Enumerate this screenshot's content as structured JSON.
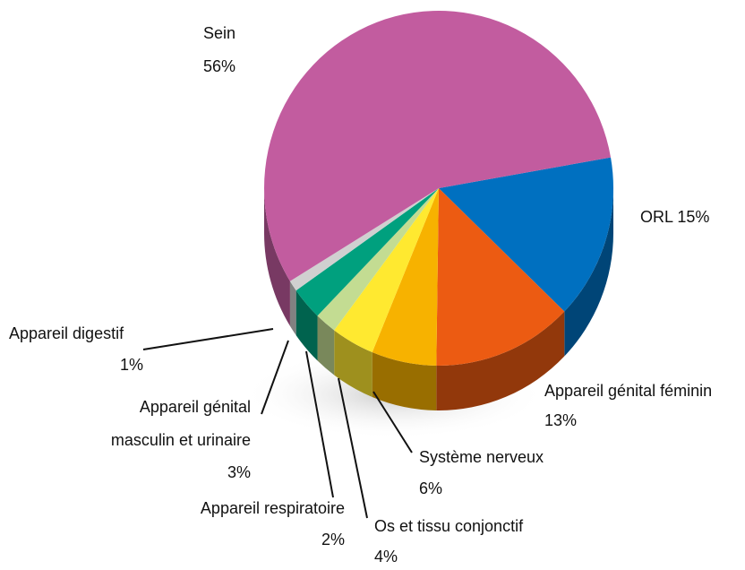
{
  "chart_data": {
    "type": "pie",
    "categories": [
      "ORL",
      "Appareil génital féminin",
      "Système nerveux",
      "Os et tissu conjonctif",
      "Appareil respiratoire",
      "Appareil génital masculin et urinaire",
      "Appareil digestif",
      "Sein"
    ],
    "values": [
      15,
      13,
      6,
      4,
      2,
      3,
      1,
      56
    ],
    "value_labels": [
      "15%",
      "13%",
      "6%",
      "4%",
      "2%",
      "3%",
      "1%",
      "56%"
    ],
    "colors": [
      "#0070c0",
      "#ec5b12",
      "#f7b200",
      "#ffe930",
      "#c3dc92",
      "#00a07e",
      "#d0d0d0",
      "#c25c9f"
    ]
  }
}
